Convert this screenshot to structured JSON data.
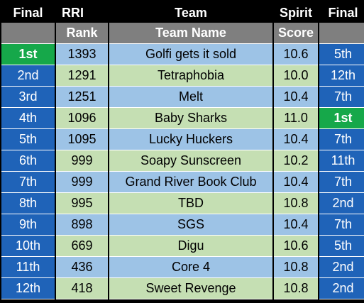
{
  "headers": {
    "row1": {
      "final_left": "Final",
      "rri": "RRI",
      "team": "Team",
      "spirit": "Spirit",
      "final_right": "Final"
    },
    "row2": {
      "rank": "Rank",
      "team_name": "Team Name",
      "score": "Score"
    }
  },
  "rows": [
    {
      "final": "1st",
      "rank": "1393",
      "team": "Golfi gets it sold",
      "score": "10.6",
      "spirit_final": "5th"
    },
    {
      "final": "2nd",
      "rank": "1291",
      "team": "Tetraphobia",
      "score": "10.0",
      "spirit_final": "12th"
    },
    {
      "final": "3rd",
      "rank": "1251",
      "team": "Melt",
      "score": "10.4",
      "spirit_final": "7th"
    },
    {
      "final": "4th",
      "rank": "1096",
      "team": "Baby Sharks",
      "score": "11.0",
      "spirit_final": "1st"
    },
    {
      "final": "5th",
      "rank": "1095",
      "team": "Lucky Huckers",
      "score": "10.4",
      "spirit_final": "7th"
    },
    {
      "final": "6th",
      "rank": "999",
      "team": "Soapy Sunscreen",
      "score": "10.2",
      "spirit_final": "11th"
    },
    {
      "final": "7th",
      "rank": "999",
      "team": "Grand River Book Club",
      "score": "10.4",
      "spirit_final": "7th"
    },
    {
      "final": "8th",
      "rank": "995",
      "team": "TBD",
      "score": "10.8",
      "spirit_final": "2nd"
    },
    {
      "final": "9th",
      "rank": "898",
      "team": "SGS",
      "score": "10.4",
      "spirit_final": "7th"
    },
    {
      "final": "10th",
      "rank": "669",
      "team": "Digu",
      "score": "10.6",
      "spirit_final": "5th"
    },
    {
      "final": "11th",
      "rank": "436",
      "team": "Core 4",
      "score": "10.8",
      "spirit_final": "2nd"
    },
    {
      "final": "12th",
      "rank": "418",
      "team": "Sweet Revenge",
      "score": "10.8",
      "spirit_final": "2nd"
    }
  ],
  "colors": {
    "final_cell": "#1f63b8",
    "winner_highlight": "#16a84a",
    "row_light_blue": "#9dc3e6",
    "row_light_green": "#c5dfb3",
    "subheader": "#7f7f7f"
  }
}
